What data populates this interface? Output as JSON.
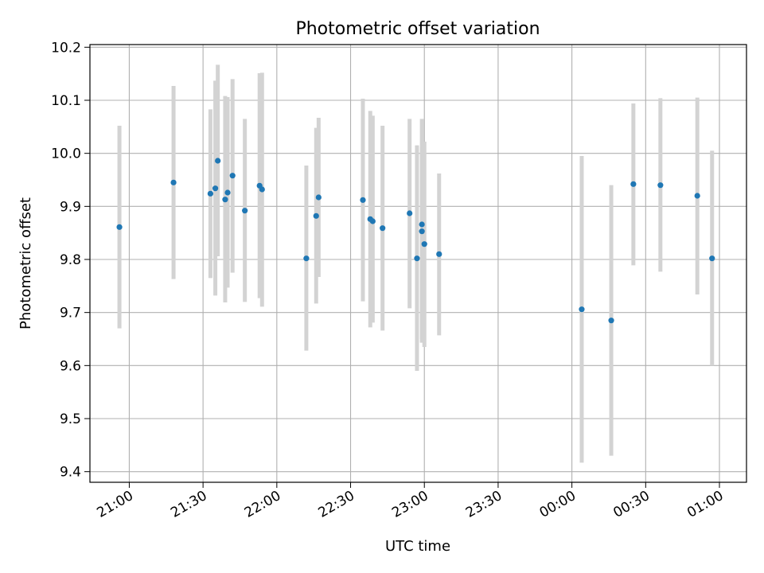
{
  "chart_data": {
    "type": "scatter",
    "title": "Photometric offset variation",
    "xlabel": "UTC time",
    "ylabel": "Photometric offset",
    "grid": true,
    "legend": "none",
    "marker_color": "#1f77b4",
    "errorbar_color": "#d3d3d3",
    "xlim": [
      "20:44",
      "01:11"
    ],
    "ylim": [
      9.38,
      10.205
    ],
    "x_ticks": [
      "21:00",
      "21:30",
      "22:00",
      "22:30",
      "23:00",
      "23:30",
      "00:00",
      "00:30",
      "01:00"
    ],
    "y_ticks": [
      "9.4",
      "9.5",
      "9.6",
      "9.7",
      "9.8",
      "9.9",
      "10.0",
      "10.1",
      "10.2"
    ],
    "points": [
      {
        "x": "20:56",
        "y": 9.861,
        "ylow": 9.67,
        "yhigh": 10.052
      },
      {
        "x": "21:18",
        "y": 9.945,
        "ylow": 9.763,
        "yhigh": 10.127
      },
      {
        "x": "21:33",
        "y": 9.924,
        "ylow": 9.765,
        "yhigh": 10.083
      },
      {
        "x": "21:35",
        "y": 9.934,
        "ylow": 9.732,
        "yhigh": 10.137
      },
      {
        "x": "21:36",
        "y": 9.986,
        "ylow": 9.806,
        "yhigh": 10.167
      },
      {
        "x": "21:39",
        "y": 9.913,
        "ylow": 9.719,
        "yhigh": 10.108
      },
      {
        "x": "21:40",
        "y": 9.926,
        "ylow": 9.747,
        "yhigh": 10.106
      },
      {
        "x": "21:42",
        "y": 9.958,
        "ylow": 9.775,
        "yhigh": 10.14
      },
      {
        "x": "21:47",
        "y": 9.892,
        "ylow": 9.72,
        "yhigh": 10.065
      },
      {
        "x": "21:53",
        "y": 9.939,
        "ylow": 9.727,
        "yhigh": 10.151
      },
      {
        "x": "21:54",
        "y": 9.932,
        "ylow": 9.711,
        "yhigh": 10.152
      },
      {
        "x": "22:12",
        "y": 9.802,
        "ylow": 9.628,
        "yhigh": 9.977
      },
      {
        "x": "22:16",
        "y": 9.882,
        "ylow": 9.717,
        "yhigh": 10.048
      },
      {
        "x": "22:17",
        "y": 9.917,
        "ylow": 9.767,
        "yhigh": 10.067
      },
      {
        "x": "22:35",
        "y": 9.912,
        "ylow": 9.721,
        "yhigh": 10.103
      },
      {
        "x": "22:38",
        "y": 9.876,
        "ylow": 9.672,
        "yhigh": 10.08
      },
      {
        "x": "22:39",
        "y": 9.872,
        "ylow": 9.681,
        "yhigh": 10.071
      },
      {
        "x": "22:43",
        "y": 9.859,
        "ylow": 9.666,
        "yhigh": 10.052
      },
      {
        "x": "22:54",
        "y": 9.887,
        "ylow": 9.708,
        "yhigh": 10.065
      },
      {
        "x": "22:57",
        "y": 9.802,
        "ylow": 9.59,
        "yhigh": 10.015
      },
      {
        "x": "22:59",
        "y": 9.866,
        "ylow": 9.65,
        "yhigh": 10.065
      },
      {
        "x": "22:59",
        "y": 9.853,
        "ylow": 9.643,
        "yhigh": 10.012
      },
      {
        "x": "23:00",
        "y": 9.829,
        "ylow": 9.635,
        "yhigh": 10.022
      },
      {
        "x": "23:06",
        "y": 9.81,
        "ylow": 9.657,
        "yhigh": 9.962
      },
      {
        "x": "00:04",
        "y": 9.706,
        "ylow": 9.417,
        "yhigh": 9.995
      },
      {
        "x": "00:16",
        "y": 9.685,
        "ylow": 9.43,
        "yhigh": 9.94
      },
      {
        "x": "00:25",
        "y": 9.942,
        "ylow": 9.789,
        "yhigh": 10.094
      },
      {
        "x": "00:36",
        "y": 9.94,
        "ylow": 9.777,
        "yhigh": 10.104
      },
      {
        "x": "00:51",
        "y": 9.92,
        "ylow": 9.734,
        "yhigh": 10.105
      },
      {
        "x": "00:57",
        "y": 9.802,
        "ylow": 9.6,
        "yhigh": 10.005
      }
    ]
  }
}
